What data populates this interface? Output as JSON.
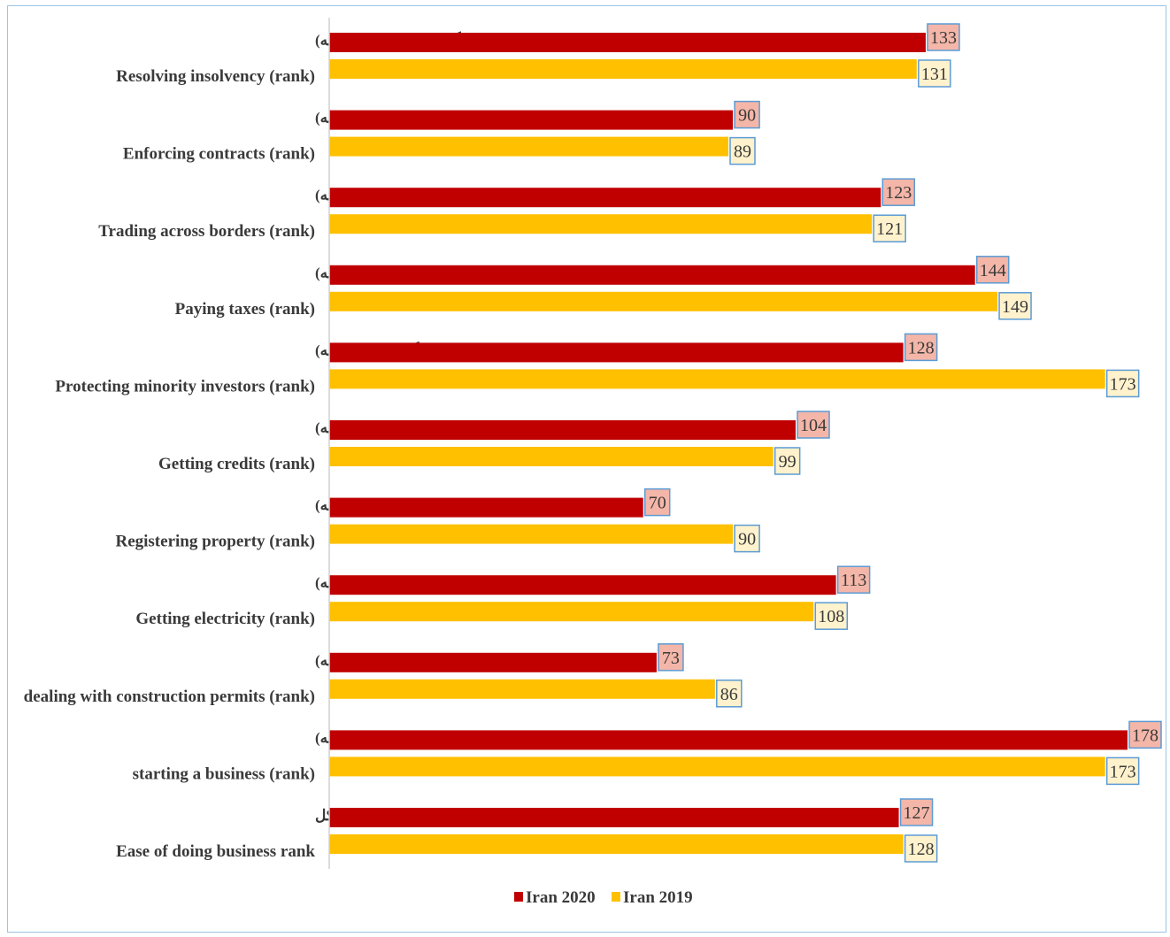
{
  "chart_data": {
    "type": "bar",
    "orientation": "horizontal",
    "categories": [
      {
        "fa": "مؤلفه‌های ورشکستگی وپرداخت دیون(رتبه)",
        "en": "Resolving insolvency (rank)"
      },
      {
        "fa": "مؤلفه‌های سهولت اجرای قراردادها(رتبه)",
        "en": "Enforcing contracts (rank)"
      },
      {
        "fa": "مؤلفه‌های تجارت فرامرزی(رتبه)",
        "en": "Trading across borders (rank)"
      },
      {
        "fa": "پرداخت مالیات(رتبه)",
        "en": "Paying taxes (rank)"
      },
      {
        "fa": "مؤلفه های حمایت ازسرمایه‌گذاران خرد(رتبه)",
        "en": "Protecting minority investors (rank)"
      },
      {
        "fa": "مؤلفه‌های اخذ اعتبارات(رتبه)",
        "en": "Getting credits (rank)"
      },
      {
        "fa": "مؤلفه‌های ثبت مالکیت(رتبه)",
        "en": "Registering property (rank)"
      },
      {
        "fa": "مؤلفه‌های دسترسی به برق(رتبه)",
        "en": "Getting electricity (rank)"
      },
      {
        "fa": "مؤلفه‌های اخذ مجوزساخت وساز(رتبه)",
        "en": "dealing with construction permits (rank)"
      },
      {
        "fa": "مؤلفه‌های شروع کسب‌وکار (رتبه)",
        "en": "starting a business (rank)"
      },
      {
        "fa": "رتبه کل",
        "en": "Ease of doing business rank"
      }
    ],
    "series": [
      {
        "name": "Iran 2020",
        "color": "#c00000",
        "label_bg": "#f4b6a8",
        "values": [
          133,
          90,
          123,
          144,
          128,
          104,
          70,
          113,
          73,
          178,
          127
        ]
      },
      {
        "name": "Iran 2019",
        "color": "#ffc000",
        "label_bg": "#fff2cc",
        "values": [
          131,
          89,
          121,
          149,
          173,
          99,
          90,
          108,
          86,
          173,
          128
        ]
      }
    ],
    "xlim": [
      0,
      178
    ],
    "grid": false,
    "legend_position": "bottom"
  }
}
